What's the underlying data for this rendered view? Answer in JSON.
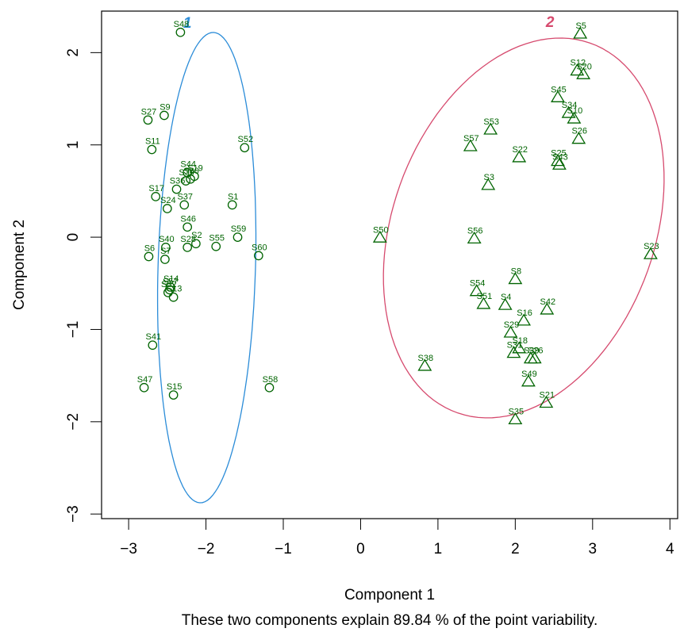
{
  "chart_data": {
    "type": "scatter",
    "xlabel": "Component 1",
    "ylabel": "Component 2",
    "subtitle": "These two components explain 89.84 % of the point variability.",
    "xlim": [
      -3.35,
      4.1
    ],
    "ylim": [
      -3.05,
      2.45
    ],
    "xticks": [
      -3,
      -2,
      -1,
      0,
      1,
      2,
      3,
      4
    ],
    "yticks": [
      -3,
      -2,
      -1,
      0,
      1,
      2
    ],
    "xtick_labels": [
      "−3",
      "−2",
      "−1",
      "0",
      "1",
      "2",
      "3",
      "4"
    ],
    "ytick_labels": [
      "−3",
      "−2",
      "−1",
      "0",
      "1",
      "2"
    ],
    "grid": false,
    "point_color": "#006400",
    "clusters": [
      {
        "label": "1",
        "color": "#2B8CD8",
        "marker": "circle",
        "ellipse": {
          "center": [
            -1.99,
            -0.33
          ],
          "semi_major": 2.55,
          "semi_minor": 0.63,
          "angle_deg": 88.0
        },
        "label_at": [
          -2.24,
          2.32
        ],
        "points": [
          {
            "name": "S48",
            "x": -2.33,
            "y": 2.22
          },
          {
            "name": "S27",
            "x": -2.75,
            "y": 1.27
          },
          {
            "name": "S9",
            "x": -2.54,
            "y": 1.32
          },
          {
            "name": "S11",
            "x": -2.7,
            "y": 0.95
          },
          {
            "name": "S52",
            "x": -1.5,
            "y": 0.97
          },
          {
            "name": "S44",
            "x": -2.24,
            "y": 0.7
          },
          {
            "name": "S19",
            "x": -2.15,
            "y": 0.66
          },
          {
            "name": "S30",
            "x": -2.2,
            "y": 0.63
          },
          {
            "name": "S39",
            "x": -2.26,
            "y": 0.61
          },
          {
            "name": "S36",
            "x": -2.38,
            "y": 0.52
          },
          {
            "name": "S17",
            "x": -2.65,
            "y": 0.44
          },
          {
            "name": "S37",
            "x": -2.28,
            "y": 0.35
          },
          {
            "name": "S1",
            "x": -1.66,
            "y": 0.35
          },
          {
            "name": "S24",
            "x": -2.5,
            "y": 0.31
          },
          {
            "name": "S46",
            "x": -2.24,
            "y": 0.11
          },
          {
            "name": "S59",
            "x": -1.59,
            "y": 0.0
          },
          {
            "name": "S2",
            "x": -2.13,
            "y": -0.07
          },
          {
            "name": "S28",
            "x": -2.24,
            "y": -0.11
          },
          {
            "name": "S55",
            "x": -1.87,
            "y": -0.1
          },
          {
            "name": "S40",
            "x": -2.52,
            "y": -0.11
          },
          {
            "name": "S6",
            "x": -2.74,
            "y": -0.21
          },
          {
            "name": "S7",
            "x": -2.53,
            "y": -0.24
          },
          {
            "name": "S60",
            "x": -1.32,
            "y": -0.2
          },
          {
            "name": "S14",
            "x": -2.46,
            "y": -0.54
          },
          {
            "name": "S57b",
            "x": -2.47,
            "y": -0.57
          },
          {
            "name": "S32",
            "x": -2.49,
            "y": -0.6
          },
          {
            "name": "S13",
            "x": -2.42,
            "y": -0.65
          },
          {
            "name": "S41",
            "x": -2.69,
            "y": -1.17
          },
          {
            "name": "S47",
            "x": -2.8,
            "y": -1.63
          },
          {
            "name": "S15",
            "x": -2.42,
            "y": -1.71
          },
          {
            "name": "S58",
            "x": -1.18,
            "y": -1.63
          }
        ]
      },
      {
        "label": "2",
        "color": "#D64A6E",
        "marker": "triangle",
        "ellipse": {
          "center": [
            2.11,
            0.1
          ],
          "semi_major": 2.2,
          "semi_minor": 1.64,
          "angle_deg": 58.0
        },
        "label_at": [
          2.45,
          2.33
        ],
        "points": [
          {
            "name": "S5",
            "x": 2.84,
            "y": 2.2
          },
          {
            "name": "S12",
            "x": 2.8,
            "y": 1.8
          },
          {
            "name": "S20",
            "x": 2.88,
            "y": 1.76
          },
          {
            "name": "S45",
            "x": 2.55,
            "y": 1.51
          },
          {
            "name": "S34",
            "x": 2.69,
            "y": 1.34
          },
          {
            "name": "S10",
            "x": 2.76,
            "y": 1.28
          },
          {
            "name": "S53",
            "x": 1.68,
            "y": 1.16
          },
          {
            "name": "S26",
            "x": 2.82,
            "y": 1.06
          },
          {
            "name": "S57",
            "x": 1.42,
            "y": 0.98
          },
          {
            "name": "S22",
            "x": 2.05,
            "y": 0.86
          },
          {
            "name": "S25",
            "x": 2.55,
            "y": 0.82
          },
          {
            "name": "S43",
            "x": 2.57,
            "y": 0.78
          },
          {
            "name": "S3",
            "x": 1.65,
            "y": 0.56
          },
          {
            "name": "S50",
            "x": 0.25,
            "y": -0.01
          },
          {
            "name": "S56",
            "x": 1.47,
            "y": -0.02
          },
          {
            "name": "S23",
            "x": 3.75,
            "y": -0.19
          },
          {
            "name": "S8",
            "x": 2.0,
            "y": -0.46
          },
          {
            "name": "S54",
            "x": 1.5,
            "y": -0.59
          },
          {
            "name": "S4",
            "x": 1.87,
            "y": -0.74
          },
          {
            "name": "S51",
            "x": 1.59,
            "y": -0.73
          },
          {
            "name": "S42",
            "x": 2.41,
            "y": -0.79
          },
          {
            "name": "S16",
            "x": 2.11,
            "y": -0.91
          },
          {
            "name": "S29",
            "x": 1.94,
            "y": -1.04
          },
          {
            "name": "S18",
            "x": 2.05,
            "y": -1.21
          },
          {
            "name": "S31",
            "x": 1.98,
            "y": -1.26
          },
          {
            "name": "S39b",
            "x": 2.2,
            "y": -1.32
          },
          {
            "name": "S26b",
            "x": 2.25,
            "y": -1.32
          },
          {
            "name": "S38",
            "x": 0.83,
            "y": -1.4
          },
          {
            "name": "S49",
            "x": 2.17,
            "y": -1.57
          },
          {
            "name": "S21",
            "x": 2.4,
            "y": -1.8
          },
          {
            "name": "S35",
            "x": 2.0,
            "y": -1.98
          }
        ]
      }
    ]
  },
  "labels": {
    "S48": "S48",
    "S27": "S27",
    "S9": "S9",
    "S11": "S11",
    "S52": "S52",
    "S44": "S44",
    "S19": "S19",
    "S30": "S30",
    "S39": "S39",
    "S36": "S36",
    "S17": "S17",
    "S37": "S37",
    "S1": "S1",
    "S24": "S24",
    "S46": "S46",
    "S59": "S59",
    "S2": "S2",
    "S28": "S28",
    "S55": "S55",
    "S40": "S40",
    "S6": "S6",
    "S7": "S7",
    "S60": "S60",
    "S14": "S14",
    "S57b": "S57",
    "S32": "S32",
    "S13": "S13",
    "S41": "S41",
    "S47": "S47",
    "S15": "S15",
    "S58": "S58",
    "S5": "S5",
    "S12": "S12",
    "S20": "S20",
    "S45": "S45",
    "S34": "S34",
    "S10": "S10",
    "S53": "S53",
    "S26": "S26",
    "S57": "S57",
    "S22": "S22",
    "S25": "S25",
    "S43": "S43",
    "S3": "S3",
    "S50": "S50",
    "S56": "S56",
    "S23": "S23",
    "S8": "S8",
    "S54": "S54",
    "S4": "S4",
    "S51": "S51",
    "S42": "S42",
    "S16": "S16",
    "S29": "S29",
    "S18": "S18",
    "S31": "S31",
    "S39b": "S39",
    "S26b": "S26",
    "S38": "S38",
    "S49": "S49",
    "S21": "S21",
    "S35": "S35"
  }
}
